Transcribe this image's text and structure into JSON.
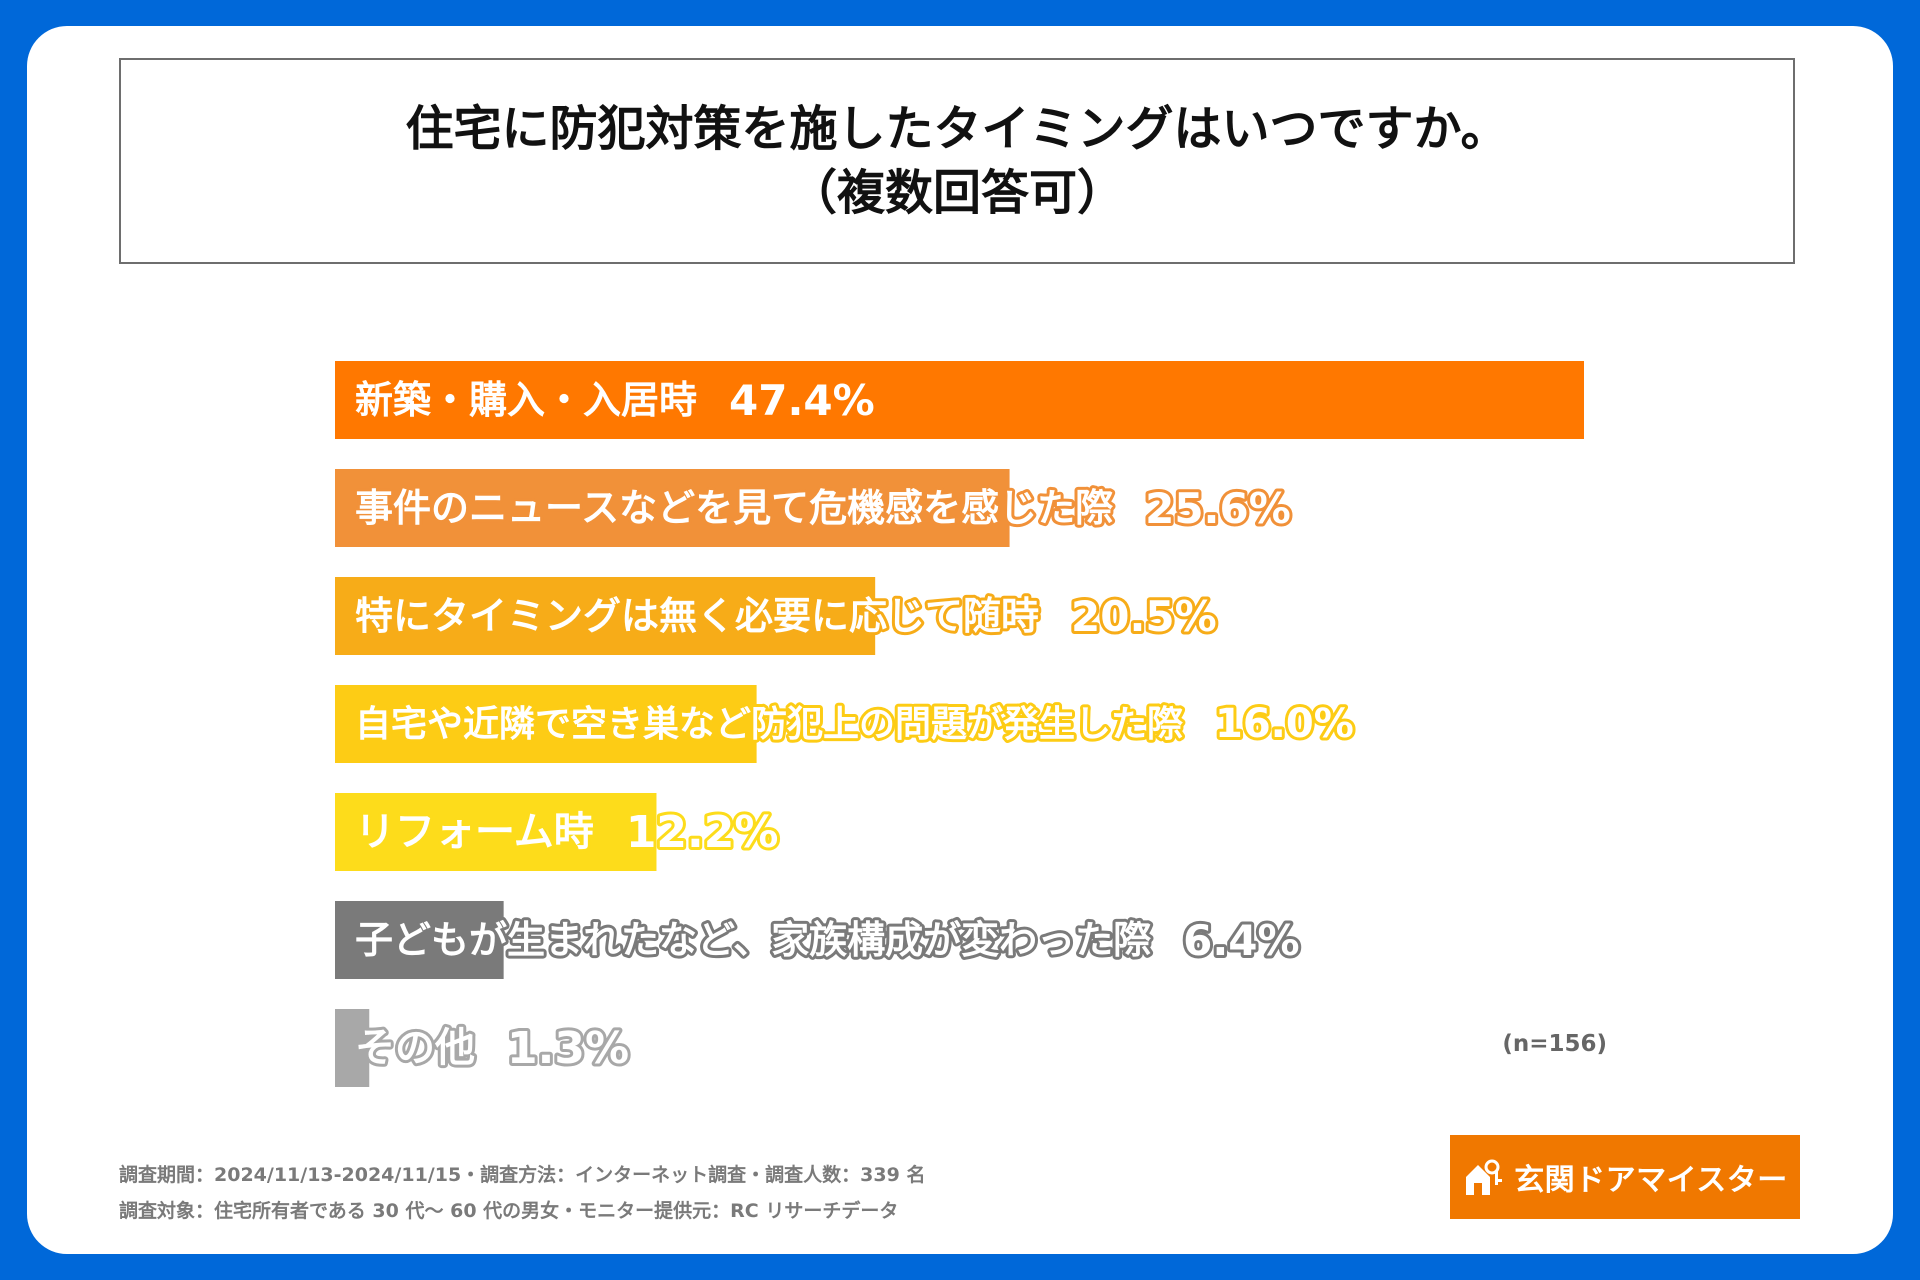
{
  "title": {
    "line1": "住宅に防犯対策を施したタイミングはいつですか。",
    "line2": "（複数回答可）"
  },
  "chart_data": {
    "type": "bar",
    "orientation": "horizontal",
    "categories": [
      "新築・購入・入居時",
      "事件のニュースなどを見て危機感を感じた際",
      "特にタイミングは無く必要に応じて随時",
      "自宅や近隣で空き巣など防犯上の問題が発生した際",
      "リフォーム時",
      "子どもが生まれたなど、家族構成が変わった際",
      "その他"
    ],
    "values": [
      47.4,
      25.6,
      20.5,
      16.0,
      12.2,
      6.4,
      1.3
    ],
    "value_labels": [
      "47.4%",
      "25.6%",
      "20.5%",
      "16.0%",
      "12.2%",
      "6.4%",
      "1.3%"
    ],
    "colors": [
      "#ff7800",
      "#f19139",
      "#f7ac18",
      "#fdcc15",
      "#fddc1b",
      "#7a7a7a",
      "#a8a8a8"
    ],
    "grid": false,
    "legend": "none",
    "sample_note": "(n=156)"
  },
  "footer": {
    "line1": "調査期間：2024/11/13-2024/11/15・調査方法：インターネット調査・調査人数：339 名",
    "line2": "調査対象：住宅所有者である 30 代～ 60 代の男女・モニター提供元：RC リサーチデータ"
  },
  "logo": {
    "text": "玄関ドアマイスター",
    "icon": "house-key-icon",
    "color": "#f07800"
  }
}
